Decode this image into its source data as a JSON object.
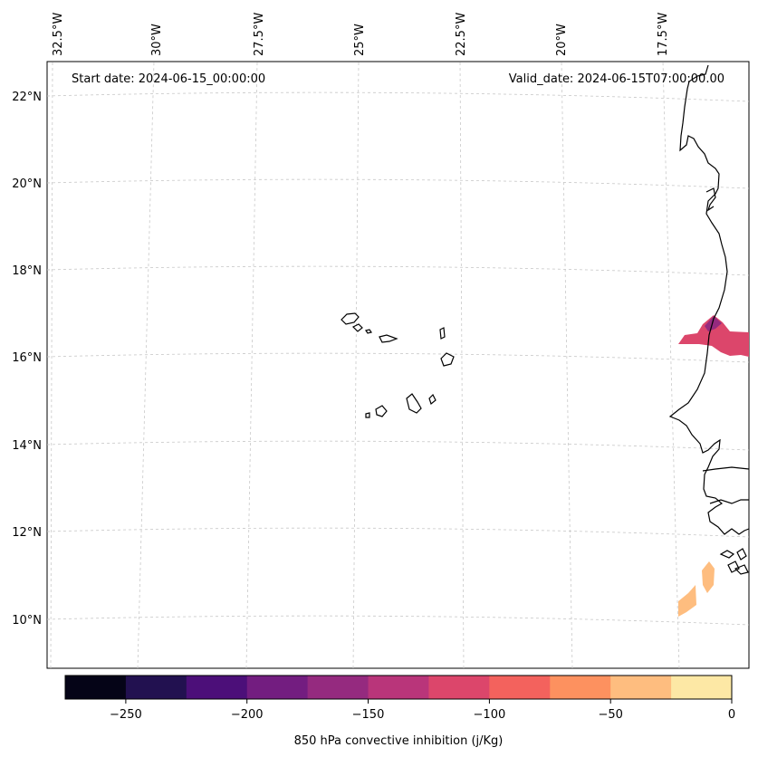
{
  "map": {
    "start_date_label": "Start date: 2024-06-15_00:00:00",
    "valid_date_label": "Valid_date: 2024-06-15T07:00:00.00",
    "lon_labels": [
      "32.5°W",
      "30°W",
      "27.5°W",
      "25°W",
      "22.5°W",
      "20°W",
      "17.5°W"
    ],
    "lat_labels": [
      "22°N",
      "20°N",
      "18°N",
      "16°N",
      "14°N",
      "12°N",
      "10°N"
    ]
  },
  "colorbar": {
    "title": "850 hPa convective inhibition (j/Kg)",
    "tick_labels": [
      "−250",
      "−200",
      "−150",
      "−100",
      "−50",
      "0"
    ],
    "colors": [
      "#050417",
      "#221150",
      "#4c0f79",
      "#731d80",
      "#952a7f",
      "#b9357a",
      "#dc466b",
      "#f3625d",
      "#fd915f",
      "#febd7f",
      "#fde8a5"
    ]
  },
  "fills": {
    "mauritania_color": "#dc466b",
    "mauritania_dark_color": "#952a7f",
    "guinea_color": "#febd7f"
  }
}
